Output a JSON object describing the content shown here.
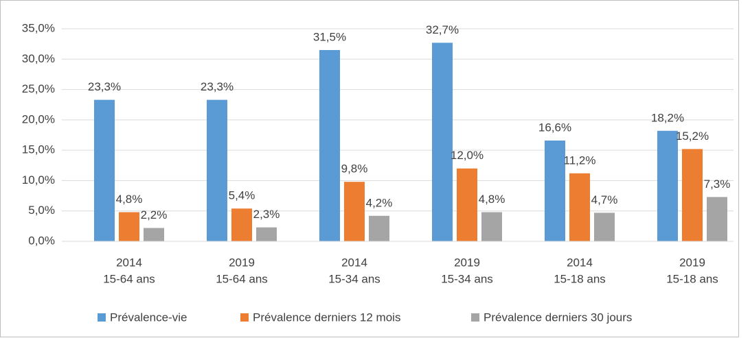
{
  "chart_data": {
    "type": "bar",
    "categories": [
      [
        "2014",
        "15-64 ans"
      ],
      [
        "2019",
        "15-64 ans"
      ],
      [
        "2014",
        "15-34 ans"
      ],
      [
        "2019",
        "15-34 ans"
      ],
      [
        "2014",
        "15-18 ans"
      ],
      [
        "2019",
        "15-18 ans"
      ]
    ],
    "series": [
      {
        "name": "Prévalence-vie",
        "color": "#5b9bd5",
        "values": [
          23.3,
          23.3,
          31.5,
          32.7,
          16.6,
          18.2
        ],
        "value_labels": [
          "23,3%",
          "23,3%",
          "31,5%",
          "32,7%",
          "16,6%",
          "18,2%"
        ]
      },
      {
        "name": "Prévalence derniers 12 mois",
        "color": "#ed7d31",
        "values": [
          4.8,
          5.4,
          9.8,
          12.0,
          11.2,
          15.2
        ],
        "value_labels": [
          "4,8%",
          "5,4%",
          "9,8%",
          "12,0%",
          "11,2%",
          "15,2%"
        ]
      },
      {
        "name": "Prévalence derniers 30 jours",
        "color": "#a5a5a5",
        "values": [
          2.2,
          2.3,
          4.2,
          4.8,
          4.7,
          7.3
        ],
        "value_labels": [
          "2,2%",
          "2,3%",
          "4,2%",
          "4,8%",
          "4,7%",
          "7,3%"
        ]
      }
    ],
    "ylim": [
      0,
      35
    ],
    "yticks": [
      {
        "value": 0,
        "label": "0,0%"
      },
      {
        "value": 5,
        "label": "5,0%"
      },
      {
        "value": 10,
        "label": "10,0%"
      },
      {
        "value": 15,
        "label": "15,0%"
      },
      {
        "value": 20,
        "label": "20,0%"
      },
      {
        "value": 25,
        "label": "25,0%"
      },
      {
        "value": 30,
        "label": "30,0%"
      },
      {
        "value": 35,
        "label": "35,0%"
      }
    ],
    "grid": true,
    "legend": "bottom"
  }
}
